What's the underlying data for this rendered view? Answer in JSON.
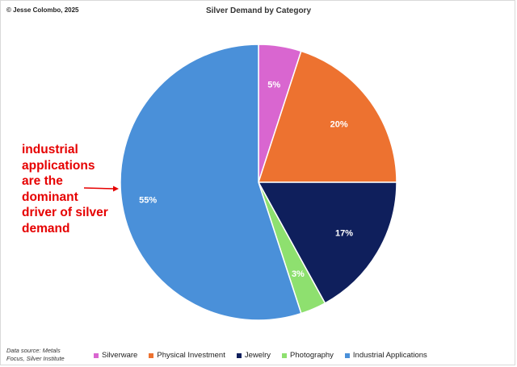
{
  "copyright": "© Jesse Colombo, 2025",
  "source": "Data source: Metals Focus, Silver Institute",
  "annotation": {
    "lines": [
      "industrial",
      "applications",
      "are the",
      "dominant",
      "driver of silver",
      "demand"
    ],
    "color": "#e60000"
  },
  "chart_data": {
    "type": "pie",
    "title": "Silver Demand by Category",
    "legend_position": "bottom",
    "slices": [
      {
        "label": "Silverware",
        "value": 5,
        "display": "5%",
        "color": "#d966d0"
      },
      {
        "label": "Physical Investment",
        "value": 20,
        "display": "20%",
        "color": "#ed7230"
      },
      {
        "label": "Jewelry",
        "value": 17,
        "display": "17%",
        "color": "#0f1f5c"
      },
      {
        "label": "Photography",
        "value": 3,
        "display": "3%",
        "color": "#8ee06f"
      },
      {
        "label": "Industrial Applications",
        "value": 55,
        "display": "55%",
        "color": "#4a90d9"
      }
    ]
  }
}
